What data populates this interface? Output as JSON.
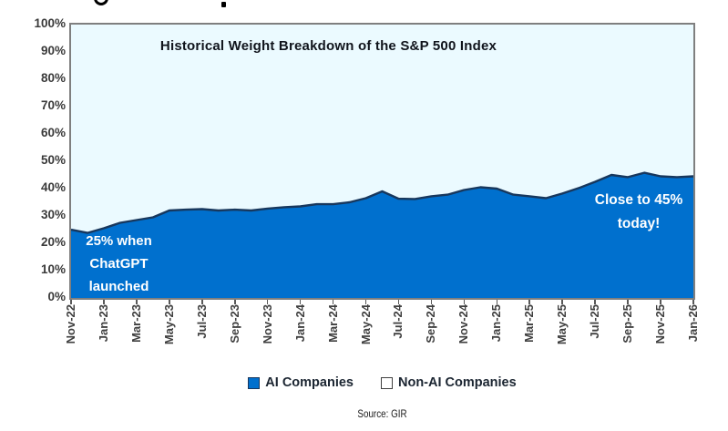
{
  "chart": {
    "annotations": {
      "launch": {
        "line1": "25% when",
        "line2": "ChatGPT",
        "line3": "launched"
      },
      "today": {
        "line1": "Close to 45%",
        "line2": "today!"
      }
    }
  },
  "chart_data": {
    "type": "area",
    "stacked": true,
    "title": "Historical Weight Breakdown of the S&P 500 Index",
    "x": [
      "Nov-22",
      "Dec-22",
      "Jan-23",
      "Feb-23",
      "Mar-23",
      "Apr-23",
      "May-23",
      "Jun-23",
      "Jul-23",
      "Aug-23",
      "Sep-23",
      "Oct-23",
      "Nov-23",
      "Dec-23",
      "Jan-24",
      "Feb-24",
      "Mar-24",
      "Apr-24",
      "May-24",
      "Jun-24",
      "Jul-24",
      "Aug-24",
      "Sep-24",
      "Oct-24",
      "Nov-24",
      "Dec-24",
      "Jan-25",
      "Feb-25",
      "Mar-25",
      "Apr-25",
      "May-25",
      "Jun-25",
      "Jul-25",
      "Aug-25",
      "Sep-25",
      "Oct-25",
      "Nov-25",
      "Dec-25",
      "Jan-26"
    ],
    "x_tick_labels": [
      "Nov-22",
      "Jan-23",
      "Mar-23",
      "May-23",
      "Jul-23",
      "Sep-23",
      "Nov-23",
      "Jan-24",
      "Mar-24",
      "May-24",
      "Jul-24",
      "Sep-24",
      "Nov-24",
      "Jan-25",
      "Mar-25",
      "May-25",
      "Jul-25",
      "Sep-25",
      "Nov-25",
      "Jan-26"
    ],
    "y_tick_labels": [
      "100%",
      "90%",
      "80%",
      "70%",
      "60%",
      "50%",
      "40%",
      "30%",
      "20%",
      "10%",
      "0%"
    ],
    "ylim": [
      0,
      100
    ],
    "grid": false,
    "legend_position": "bottom",
    "series": [
      {
        "name": "AI Companies",
        "color": "#0070CE",
        "line_color": "#17375D",
        "values": [
          25,
          23.8,
          25.5,
          27.5,
          28.5,
          29.5,
          32,
          32.3,
          32.5,
          32,
          32.3,
          32,
          32.7,
          33.2,
          33.5,
          34.3,
          34.3,
          35,
          36.5,
          39,
          36.3,
          36.2,
          37.2,
          37.8,
          39.5,
          40.5,
          40,
          37.8,
          37.2,
          36.5,
          38.2,
          40.2,
          42.5,
          45,
          44.2,
          45.8,
          44.5,
          44.2,
          44.5
        ]
      },
      {
        "name": "Non-AI Companies",
        "color": "#EBFAFF",
        "note": "remainder to 100%"
      }
    ],
    "annotations": [
      {
        "text": "25% when ChatGPT launched",
        "anchor_x": "Dec-22",
        "anchor_y": 15
      },
      {
        "text": "Close to 45% today!",
        "anchor_x": "Sep-25",
        "anchor_y": 35
      }
    ]
  },
  "legend": {
    "items": [
      {
        "label": "AI Companies",
        "color": "#0070CE"
      },
      {
        "label": "Non-AI Companies",
        "color": "#FFFFFF"
      }
    ]
  },
  "source": {
    "text": "Source: GIR"
  }
}
